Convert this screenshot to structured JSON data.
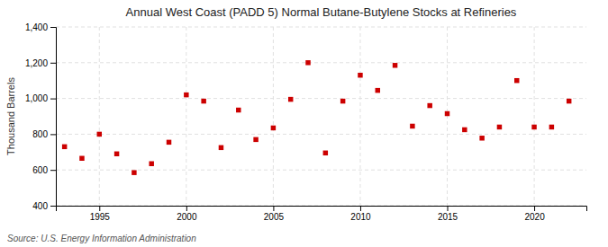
{
  "chart_data": {
    "type": "scatter",
    "title": "Annual West Coast (PADD 5) Normal Butane-Butylene Stocks at Refineries",
    "ylabel": "Thousand Barrels",
    "annotation": "Source: U.S. Energy Information Administration",
    "color": "#cc0000",
    "marker": "square",
    "grid": true,
    "xlim": [
      1992.5,
      2023
    ],
    "ylim": [
      400,
      1400
    ],
    "xticks": [
      1995,
      2000,
      2005,
      2010,
      2015,
      2020
    ],
    "yticks": [
      400,
      600,
      800,
      {
        "value": 1000,
        "label": "1,000"
      },
      {
        "value": 1200,
        "label": "1,200"
      },
      {
        "value": 1400,
        "label": "1,400"
      }
    ],
    "x": [
      1993,
      1994,
      1995,
      1996,
      1997,
      1998,
      1999,
      2000,
      2001,
      2002,
      2003,
      2004,
      2005,
      2006,
      2007,
      2008,
      2009,
      2010,
      2011,
      2012,
      2013,
      2014,
      2015,
      2016,
      2017,
      2018,
      2019,
      2020,
      2021,
      2022
    ],
    "values": [
      730,
      665,
      800,
      690,
      585,
      635,
      755,
      1020,
      985,
      725,
      935,
      770,
      835,
      995,
      1200,
      695,
      985,
      1130,
      1045,
      1185,
      845,
      960,
      915,
      825,
      778,
      840,
      1100,
      840,
      840,
      985
    ]
  }
}
